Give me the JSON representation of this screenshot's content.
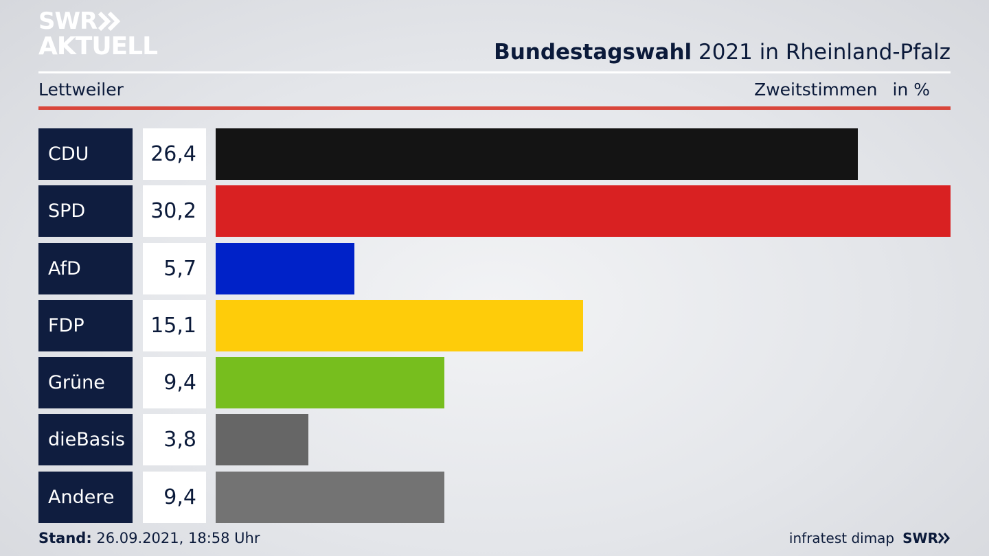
{
  "logo": {
    "line1": "SWR",
    "line2": "AKTUELL"
  },
  "header": {
    "title_bold": "Bundestagswahl",
    "title_rest": " 2021 in Rheinland-Pfalz",
    "location": "Lettweiler",
    "measure": "Zweitstimmen",
    "unit": "in %"
  },
  "chart_data": {
    "type": "bar",
    "orientation": "horizontal",
    "categories": [
      "CDU",
      "SPD",
      "AfD",
      "FDP",
      "Grüne",
      "dieBasis",
      "Andere"
    ],
    "values": [
      26.4,
      30.2,
      5.7,
      15.1,
      9.4,
      3.8,
      9.4
    ],
    "value_labels": [
      "26,4",
      "30,2",
      "5,7",
      "15,1",
      "9,4",
      "3,8",
      "9,4"
    ],
    "colors": [
      "#141414",
      "#d92122",
      "#0022c8",
      "#fecc0a",
      "#77be1e",
      "#666666",
      "#737373"
    ],
    "xlim": [
      0,
      30.2
    ]
  },
  "footer": {
    "stand_label": "Stand:",
    "stand_value": " 26.09.2021, 18:58 Uhr",
    "source": "infratest dimap",
    "brand": "SWR"
  }
}
